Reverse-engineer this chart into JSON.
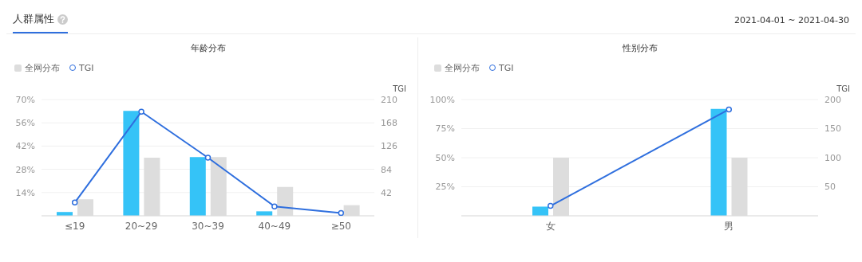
{
  "chart_data": [
    {
      "type": "bar",
      "title": "年龄分布",
      "annotations": [
        "人群属性",
        "2021-04-01 ~ 2021-04-30"
      ],
      "categories": [
        "≤19",
        "20~29",
        "30~39",
        "40~49",
        "≥50"
      ],
      "series": [
        {
          "color": "#35c3f7",
          "values": [
            2.3,
            63.2,
            35.3,
            2.7,
            null
          ]
        },
        {
          "name": "全网分布",
          "color": "#dddddd",
          "values": [
            10,
            35,
            35.3,
            17.4,
            6.4
          ]
        },
        {
          "name": "TGI",
          "type": "line",
          "axis": "y2",
          "color": "#2f6fde",
          "marker": "circle",
          "values": [
            24,
            188,
            105,
            17,
            5
          ]
        }
      ],
      "ylim": [
        0,
        70
      ],
      "yticks": [
        {
          "value": 14,
          "label": "14%"
        },
        {
          "value": 28,
          "label": "28%"
        },
        {
          "value": 42,
          "label": "42%"
        },
        {
          "value": 56,
          "label": "56%"
        },
        {
          "value": 70,
          "label": "70%"
        }
      ],
      "y2label": "TGI",
      "y2lim": [
        0,
        210
      ],
      "y2ticks": [
        42,
        84,
        126,
        168,
        210
      ],
      "grid": "y",
      "legend": "top left"
    },
    {
      "type": "bar",
      "title": "性别分布",
      "categories": [
        "女",
        "男"
      ],
      "series": [
        {
          "color": "#35c3f7",
          "values": [
            7.9,
            91.9
          ]
        },
        {
          "name": "全网分布",
          "color": "#dddddd",
          "values": [
            50,
            50
          ]
        },
        {
          "name": "TGI",
          "type": "line",
          "axis": "y2",
          "color": "#2f6fde",
          "marker": "circle",
          "values": [
            17,
            183
          ]
        }
      ],
      "ylim": [
        0,
        100
      ],
      "yticks": [
        {
          "value": 25,
          "label": "25%"
        },
        {
          "value": 50,
          "label": "50%"
        },
        {
          "value": 75,
          "label": "75%"
        },
        {
          "value": 100,
          "label": "100%"
        }
      ],
      "y2label": "TGI",
      "y2lim": [
        0,
        200
      ],
      "y2ticks": [
        50,
        100,
        150,
        200
      ],
      "grid": "y",
      "legend": "top left"
    }
  ]
}
